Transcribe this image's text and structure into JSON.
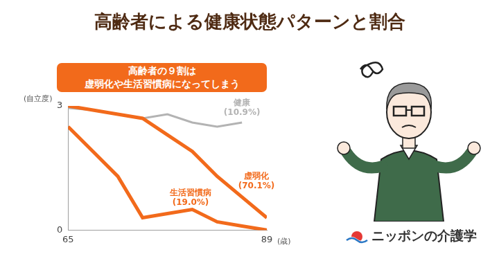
{
  "logo": "ニッポンの介護学",
  "chart_data": {
    "type": "line",
    "title": "高齢者による健康状態パターンと割合",
    "annotation": [
      "高齢者の９割は",
      "虚弱化や生活習慣病になってしまう"
    ],
    "y_label": "(自立度)",
    "x_label": "(歳)",
    "x": [
      65,
      68,
      71,
      74,
      77,
      80,
      83,
      86,
      89
    ],
    "xlim": [
      65,
      89
    ],
    "xticks": [
      65,
      89
    ],
    "ylim": [
      0,
      3
    ],
    "yticks": [
      0,
      3
    ],
    "grid": false,
    "series": [
      {
        "name": "健康",
        "label": "(10.9%)",
        "color": "#b3b3b3",
        "values": [
          2.95,
          2.9,
          2.8,
          2.7,
          2.8,
          2.6,
          2.5,
          2.6,
          null
        ]
      },
      {
        "name": "虚弱化",
        "label": "(70.1%)",
        "color": "#f26a1b",
        "values": [
          3.0,
          2.9,
          2.8,
          2.7,
          2.3,
          1.9,
          1.3,
          0.8,
          0.3
        ]
      },
      {
        "name": "生活習慣病",
        "label": "(19.0%)",
        "color": "#f26a1b",
        "values": [
          2.5,
          1.9,
          1.3,
          0.3,
          0.4,
          0.5,
          0.2,
          0.1,
          0.0
        ]
      }
    ]
  }
}
